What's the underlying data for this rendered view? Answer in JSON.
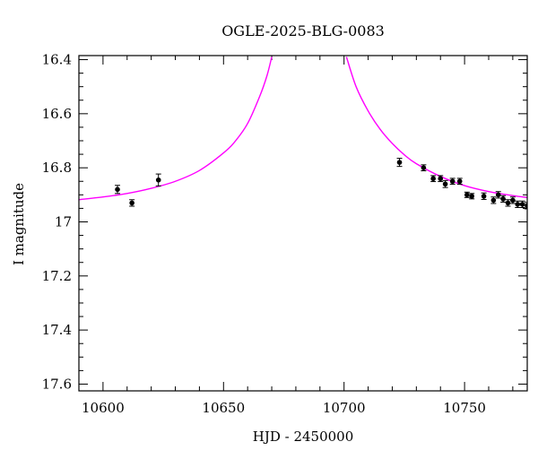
{
  "chart_data": {
    "type": "scatter",
    "title": "OGLE-2025-BLG-0083",
    "xlabel": "HJD - 2450000",
    "ylabel": "I magnitude",
    "xlim": [
      10590,
      10776
    ],
    "ylim": [
      16.385,
      17.625
    ],
    "y_inverted": true,
    "x_ticks": [
      10600,
      10650,
      10700,
      10750
    ],
    "y_ticks": [
      16.4,
      16.6,
      16.8,
      17,
      17.2,
      17.4,
      17.6
    ],
    "y_tick_labels": [
      "16.4",
      "16.6",
      "16.8",
      "17",
      "17.2",
      "17.4",
      "17.6"
    ],
    "grid": false,
    "legend": "none",
    "colors": {
      "model": "#ff00ff",
      "points": "#000000",
      "axes": "#000000"
    },
    "series": [
      {
        "kind": "points",
        "x": [
          10606,
          10612,
          10623,
          10723,
          10733,
          10737,
          10740,
          10742,
          10745,
          10748,
          10751,
          10753,
          10758,
          10762,
          10764,
          10766,
          10768,
          10770,
          10772,
          10774,
          10776
        ],
        "y": [
          16.88,
          16.93,
          16.845,
          16.78,
          16.8,
          16.84,
          16.84,
          16.86,
          16.85,
          16.85,
          16.9,
          16.905,
          16.905,
          16.92,
          16.9,
          16.915,
          16.93,
          16.92,
          16.935,
          16.935,
          16.94
        ],
        "err": [
          0.015,
          0.012,
          0.022,
          0.015,
          0.011,
          0.011,
          0.011,
          0.013,
          0.011,
          0.011,
          0.01,
          0.01,
          0.012,
          0.012,
          0.012,
          0.012,
          0.012,
          0.012,
          0.012,
          0.012,
          0.012
        ]
      },
      {
        "kind": "model",
        "x": [
          10590,
          10600,
          10610,
          10620,
          10630,
          10640,
          10650,
          10655,
          10660,
          10665,
          10668,
          10670,
          10701,
          10705,
          10710,
          10715,
          10720,
          10725,
          10730,
          10740,
          10750,
          10760,
          10770,
          10776
        ],
        "y": [
          16.918,
          16.908,
          16.895,
          16.876,
          16.85,
          16.81,
          16.745,
          16.7,
          16.636,
          16.536,
          16.46,
          16.39,
          16.39,
          16.5,
          16.59,
          16.658,
          16.71,
          16.752,
          16.785,
          16.832,
          16.866,
          16.888,
          16.903,
          16.91
        ]
      }
    ]
  }
}
